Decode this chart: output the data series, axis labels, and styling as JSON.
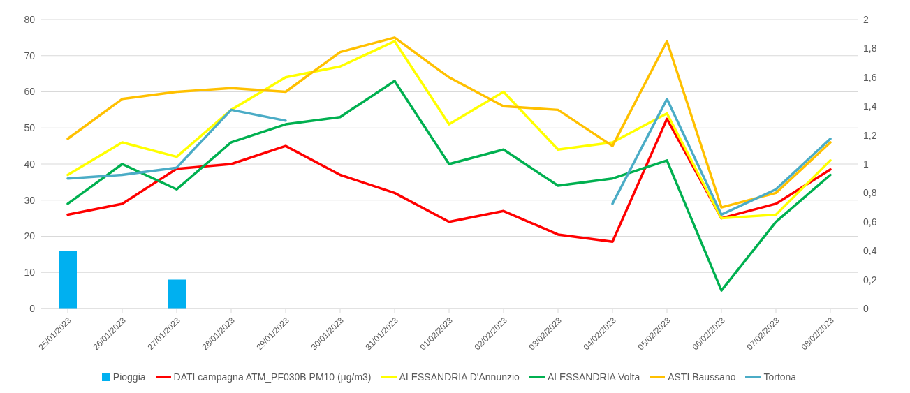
{
  "chart_data": {
    "type": "line",
    "categories": [
      "25/01/2023",
      "26/01/2023",
      "27/01/2023",
      "28/01/2023",
      "29/01/2023",
      "30/01/2023",
      "31/01/2023",
      "01/02/2023",
      "02/02/2023",
      "03/02/2023",
      "04/02/2023",
      "05/02/2023",
      "06/02/2023",
      "07/02/2023",
      "08/02/2023"
    ],
    "series": [
      {
        "name": "Pioggia",
        "type": "bar",
        "axis": "y2",
        "color": "#00b0f0",
        "values": [
          0.4,
          null,
          0.2,
          null,
          null,
          null,
          null,
          null,
          null,
          null,
          null,
          null,
          null,
          null,
          null
        ]
      },
      {
        "name": "DATI campagna ATM_PF030B  PM10 (µg/m3)",
        "color": "#ff0000",
        "values": [
          26,
          29,
          38.7,
          40,
          45,
          37,
          32,
          24,
          27,
          20.5,
          18.5,
          52.5,
          25,
          29,
          38.5
        ]
      },
      {
        "name": "ALESSANDRIA D'Annunzio",
        "color": "#ffff00",
        "values": [
          37,
          46,
          42,
          55,
          64,
          67,
          74,
          51,
          60,
          44,
          46,
          54,
          25,
          26,
          41
        ]
      },
      {
        "name": "ALESSANDRIA Volta",
        "color": "#00b050",
        "values": [
          29,
          40,
          33,
          46,
          51,
          53,
          63,
          40,
          44,
          34,
          36,
          41,
          5,
          24,
          37
        ]
      },
      {
        "name": "ASTI  Baussano",
        "color": "#ffc000",
        "values": [
          47,
          58,
          60,
          61,
          60,
          71,
          75,
          64,
          56,
          55,
          45,
          74,
          28,
          32,
          46
        ]
      },
      {
        "name": "Tortona",
        "color": "#4bacc6",
        "values": [
          36,
          37,
          39,
          55,
          52,
          null,
          null,
          null,
          null,
          null,
          29,
          58,
          26,
          33,
          47
        ]
      }
    ],
    "ylim": [
      0,
      80
    ],
    "yticks": [
      0,
      10,
      20,
      30,
      40,
      50,
      60,
      70,
      80
    ],
    "y2lim": [
      0,
      2
    ],
    "y2ticks": [
      0,
      {
        "value": 0.2,
        "label": "0,2"
      },
      {
        "value": 0.4,
        "label": "0,4"
      },
      {
        "value": 0.6,
        "label": "0,6"
      },
      {
        "value": 0.8,
        "label": "0,8"
      },
      1,
      {
        "value": 1.2,
        "label": "1,2"
      },
      {
        "value": 1.4,
        "label": "1,4"
      },
      {
        "value": 1.6,
        "label": "1,6"
      },
      {
        "value": 1.8,
        "label": "1,8"
      },
      2
    ],
    "grid": "y",
    "legend": "bottom",
    "marker": "none",
    "line_style": "solid"
  }
}
